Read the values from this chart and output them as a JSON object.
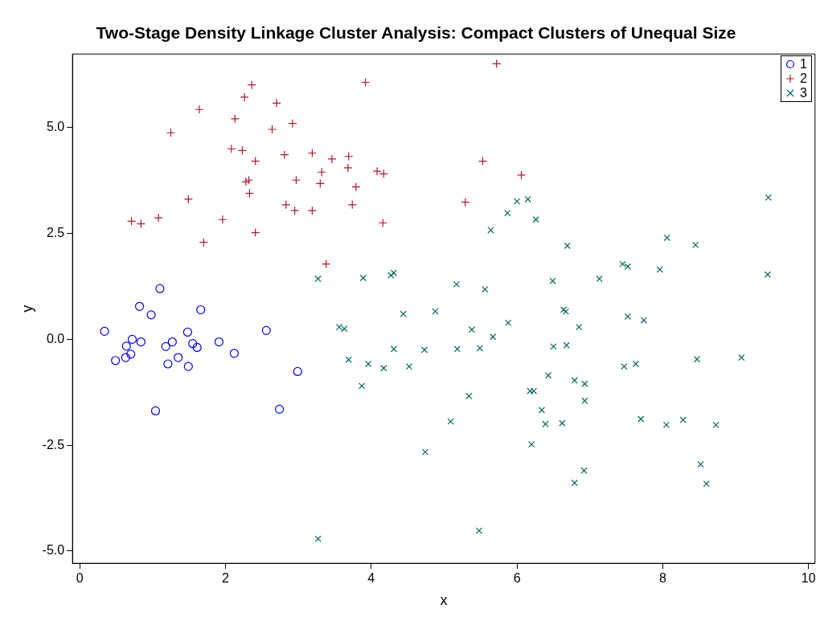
{
  "chart_data": {
    "type": "scatter",
    "title": "Two-Stage Density Linkage Cluster Analysis: Compact Clusters of Unequal Size",
    "xlabel": "x",
    "ylabel": "y",
    "xlim": [
      -0.1,
      10.09
    ],
    "ylim": [
      -5.29,
      6.74
    ],
    "xticks": [
      0,
      2,
      4,
      6,
      8,
      10
    ],
    "yticks": [
      {
        "value": -5,
        "label": "-5.0"
      },
      {
        "value": -2.5,
        "label": "-2.5"
      },
      {
        "value": 0,
        "label": "0.0"
      },
      {
        "value": 2.5,
        "label": "2.5"
      },
      {
        "value": 5,
        "label": "5.0"
      }
    ],
    "grid": false,
    "legend": "top right",
    "series": [
      {
        "name": "1",
        "color": "#0000ff",
        "marker": "circle",
        "x": [
          0.34,
          0.49,
          0.64,
          0.63,
          0.72,
          0.7,
          0.82,
          0.84,
          0.98,
          1.04,
          1.1,
          1.18,
          1.21,
          1.27,
          1.35,
          1.48,
          1.49,
          1.55,
          1.61,
          1.66,
          1.91,
          2.12,
          2.56,
          2.74,
          2.99
        ],
        "values": [
          0.19,
          -0.5,
          -0.16,
          -0.43,
          0.0,
          -0.35,
          0.78,
          -0.06,
          0.58,
          -1.69,
          1.2,
          -0.17,
          -0.58,
          -0.06,
          -0.43,
          0.17,
          -0.64,
          -0.1,
          -0.19,
          0.7,
          -0.06,
          -0.33,
          0.21,
          -1.65,
          -0.76
        ]
      },
      {
        "name": "2",
        "color": "#b2182b",
        "marker": "plus",
        "x": [
          0.71,
          0.84,
          1.25,
          1.08,
          1.49,
          1.64,
          1.7,
          1.96,
          2.08,
          2.13,
          2.23,
          2.26,
          2.28,
          2.32,
          2.33,
          2.36,
          2.41,
          2.41,
          2.64,
          2.7,
          2.81,
          2.83,
          2.92,
          2.95,
          2.97,
          3.19,
          3.19,
          3.3,
          3.32,
          3.38,
          3.46,
          3.68,
          3.69,
          3.74,
          3.79,
          3.92,
          4.08,
          4.17,
          4.16,
          5.29,
          5.53,
          5.72,
          6.06
        ],
        "values": [
          2.79,
          2.73,
          4.88,
          2.87,
          3.31,
          5.43,
          2.29,
          2.83,
          4.5,
          5.21,
          4.46,
          5.72,
          3.72,
          3.76,
          3.45,
          6.01,
          4.21,
          2.52,
          4.96,
          5.58,
          4.36,
          3.18,
          5.1,
          3.04,
          3.76,
          4.4,
          3.04,
          3.68,
          3.95,
          1.78,
          4.26,
          4.05,
          4.32,
          3.18,
          3.6,
          6.07,
          3.97,
          3.91,
          2.75,
          3.24,
          4.21,
          6.51,
          3.88
        ]
      },
      {
        "name": "3",
        "color": "#00695c",
        "marker": "cross",
        "x": [
          3.27,
          3.27,
          3.56,
          3.63,
          3.69,
          3.89,
          3.87,
          3.96,
          4.17,
          4.31,
          4.27,
          4.31,
          4.44,
          4.52,
          4.73,
          4.74,
          4.88,
          5.09,
          5.17,
          5.18,
          5.34,
          5.38,
          5.49,
          5.48,
          5.56,
          5.64,
          5.67,
          5.87,
          5.88,
          6.0,
          6.15,
          6.18,
          6.23,
          6.2,
          6.26,
          6.34,
          6.39,
          6.43,
          6.49,
          6.5,
          6.62,
          6.64,
          6.67,
          6.68,
          6.69,
          6.79,
          6.79,
          6.85,
          6.93,
          6.93,
          6.92,
          7.13,
          7.45,
          7.47,
          7.52,
          7.52,
          7.63,
          7.7,
          7.74,
          7.96,
          8.05,
          8.06,
          8.28,
          8.45,
          8.47,
          8.52,
          8.6,
          8.73,
          9.08,
          9.44,
          9.45
        ],
        "values": [
          1.43,
          -4.71,
          0.29,
          0.25,
          -0.48,
          1.45,
          -1.1,
          -0.58,
          -0.68,
          1.57,
          1.51,
          -0.23,
          0.6,
          -0.64,
          -0.25,
          -2.66,
          0.66,
          -1.94,
          1.3,
          -0.23,
          -1.34,
          0.23,
          -0.21,
          -4.52,
          1.18,
          2.58,
          0.06,
          2.98,
          0.39,
          3.26,
          3.31,
          -1.22,
          -1.22,
          -2.48,
          2.83,
          -1.67,
          -2.0,
          -0.85,
          1.38,
          -0.17,
          -1.98,
          0.7,
          0.66,
          -0.14,
          2.21,
          -0.97,
          -3.39,
          0.29,
          -1.05,
          -1.45,
          -3.1,
          1.43,
          1.78,
          -0.64,
          1.72,
          0.54,
          -0.58,
          -1.88,
          0.45,
          1.65,
          -2.02,
          2.4,
          -1.9,
          2.23,
          -0.47,
          -2.95,
          -3.41,
          -2.02,
          -0.43,
          1.53,
          3.35
        ]
      }
    ]
  }
}
